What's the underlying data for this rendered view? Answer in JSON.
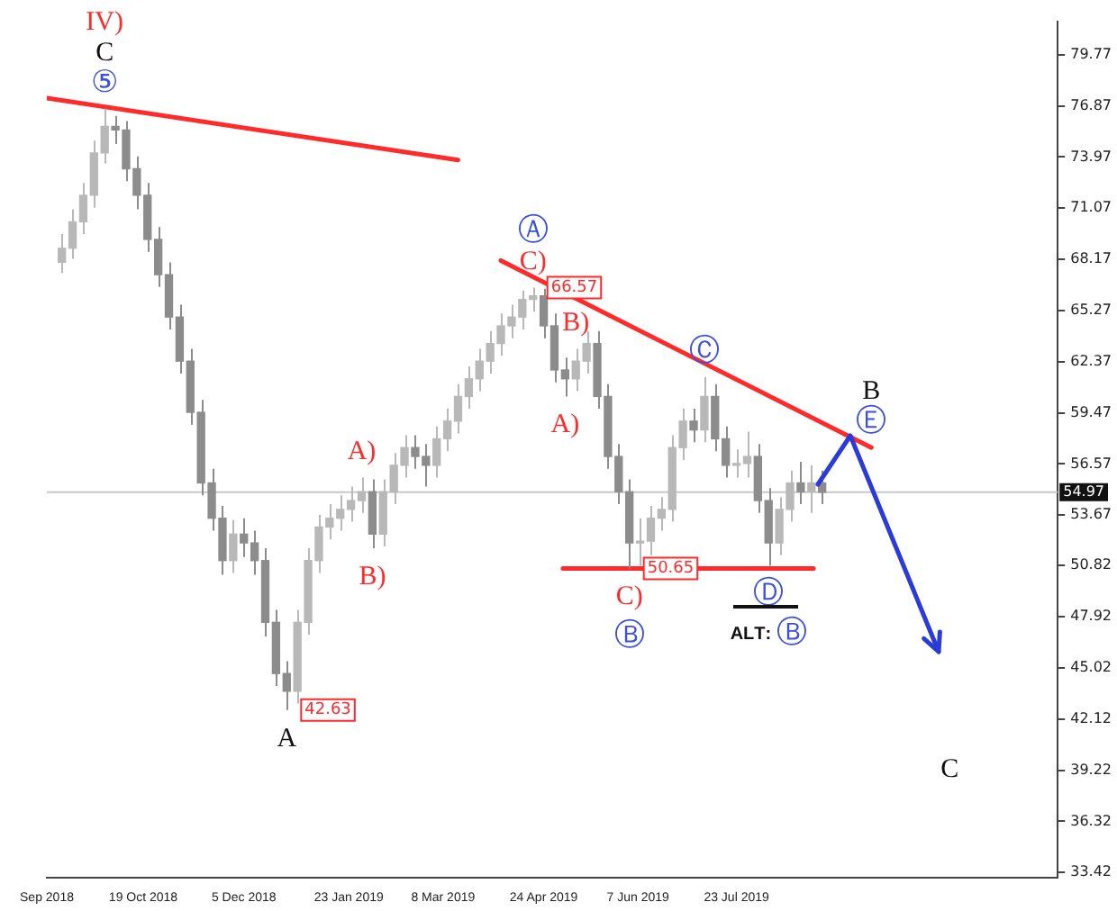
{
  "chart_data": {
    "type": "candlestick",
    "colors": [
      "#b8b8b8",
      "#b8b8b8",
      "#b8b8b8",
      "#b8b8b8",
      "#b8b8b8",
      "#8c8c8c",
      "#8c8c8c",
      "#8c8c8c",
      "#8c8c8c",
      "#8c8c8c",
      "#8c8c8c",
      "#8c8c8c",
      "#8c8c8c",
      "#8c8c8c",
      "#8c8c8c",
      "#8c8c8c",
      "#b8b8b8",
      "#8c8c8c",
      "#8c8c8c",
      "#8c8c8c",
      "#8c8c8c",
      "#8c8c8c",
      "#b8b8b8",
      "#b8b8b8",
      "#b8b8b8",
      "#b8b8b8",
      "#b8b8b8",
      "#b8b8b8",
      "#b8b8b8",
      "#8c8c8c",
      "#b8b8b8",
      "#b8b8b8",
      "#b8b8b8",
      "#8c8c8c",
      "#8c8c8c",
      "#b8b8b8",
      "#b8b8b8",
      "#b8b8b8",
      "#b8b8b8",
      "#b8b8b8",
      "#b8b8b8",
      "#b8b8b8",
      "#b8b8b8",
      "#b8b8b8",
      "#b8b8b8",
      "#8c8c8c",
      "#8c8c8c",
      "#8c8c8c",
      "#b8b8b8",
      "#b8b8b8",
      "#8c8c8c",
      "#8c8c8c",
      "#8c8c8c",
      "#8c8c8c",
      "#b8b8b8",
      "#b8b8b8",
      "#b8b8b8",
      "#b8b8b8",
      "#b8b8b8",
      "#8c8c8c",
      "#b8b8b8",
      "#8c8c8c",
      "#8c8c8c",
      "#b8b8b8",
      "#b8b8b8",
      "#8c8c8c",
      "#8c8c8c",
      "#b8b8b8",
      "#b8b8b8",
      "#8c8c8c",
      "#b8b8b8",
      "#8c8c8c"
    ],
    "x": [
      "2018-09-11",
      "2018-09-16",
      "2018-09-21",
      "2018-09-26",
      "2018-10-01",
      "2018-10-06",
      "2018-10-11",
      "2018-10-16",
      "2018-10-21",
      "2018-10-26",
      "2018-10-31",
      "2018-11-05",
      "2018-11-10",
      "2018-11-15",
      "2018-11-20",
      "2018-11-25",
      "2018-11-30",
      "2018-12-05",
      "2018-12-10",
      "2018-12-15",
      "2018-12-20",
      "2018-12-25",
      "2018-12-30",
      "2019-01-04",
      "2019-01-09",
      "2019-01-14",
      "2019-01-19",
      "2019-01-24",
      "2019-01-29",
      "2019-02-03",
      "2019-02-08",
      "2019-02-13",
      "2019-02-18",
      "2019-02-23",
      "2019-02-28",
      "2019-03-05",
      "2019-03-10",
      "2019-03-15",
      "2019-03-20",
      "2019-03-25",
      "2019-03-30",
      "2019-04-04",
      "2019-04-09",
      "2019-04-14",
      "2019-04-19",
      "2019-04-24",
      "2019-04-29",
      "2019-05-04",
      "2019-05-09",
      "2019-05-14",
      "2019-05-19",
      "2019-05-24",
      "2019-05-29",
      "2019-06-03",
      "2019-06-08",
      "2019-06-13",
      "2019-06-18",
      "2019-06-23",
      "2019-06-28",
      "2019-07-03",
      "2019-07-08",
      "2019-07-13",
      "2019-07-18",
      "2019-07-23",
      "2019-07-28",
      "2019-08-02",
      "2019-08-07",
      "2019-08-12",
      "2019-08-17",
      "2019-08-22",
      "2019-08-27",
      "2019-09-01"
    ],
    "ohlc": [
      [
        68.0,
        69.6,
        67.4,
        68.8
      ],
      [
        68.8,
        71.0,
        68.2,
        70.3
      ],
      [
        70.3,
        72.5,
        69.6,
        71.8
      ],
      [
        71.8,
        74.9,
        71.1,
        74.2
      ],
      [
        74.2,
        76.7,
        73.6,
        75.7
      ],
      [
        75.7,
        76.3,
        74.7,
        75.5
      ],
      [
        75.5,
        76.0,
        72.6,
        73.3
      ],
      [
        73.3,
        74.0,
        71.0,
        71.8
      ],
      [
        71.8,
        72.5,
        68.6,
        69.3
      ],
      [
        69.3,
        70.0,
        66.6,
        67.3
      ],
      [
        67.3,
        68.0,
        64.2,
        64.9
      ],
      [
        64.9,
        65.6,
        61.7,
        62.4
      ],
      [
        62.4,
        63.1,
        58.8,
        59.5
      ],
      [
        59.5,
        60.2,
        54.8,
        55.5
      ],
      [
        55.5,
        56.3,
        52.8,
        53.5
      ],
      [
        53.5,
        54.2,
        50.3,
        51.1
      ],
      [
        51.1,
        53.4,
        50.4,
        52.6
      ],
      [
        52.6,
        53.5,
        51.3,
        52.1
      ],
      [
        52.1,
        52.8,
        50.3,
        51.1
      ],
      [
        51.1,
        51.8,
        46.8,
        47.6
      ],
      [
        47.6,
        48.3,
        44.0,
        44.7
      ],
      [
        44.7,
        45.4,
        42.63,
        43.7
      ],
      [
        43.7,
        48.3,
        43.0,
        47.6
      ],
      [
        47.6,
        51.8,
        46.9,
        51.1
      ],
      [
        51.1,
        53.7,
        50.4,
        53.0
      ],
      [
        53.0,
        54.3,
        52.3,
        53.5
      ],
      [
        53.5,
        54.8,
        52.8,
        54.0
      ],
      [
        54.0,
        55.3,
        53.3,
        54.5
      ],
      [
        54.5,
        55.8,
        53.8,
        55.0
      ],
      [
        55.0,
        55.7,
        51.8,
        52.6
      ],
      [
        52.6,
        55.7,
        51.9,
        55.0
      ],
      [
        55.0,
        57.2,
        54.3,
        56.5
      ],
      [
        56.5,
        58.2,
        55.8,
        57.5
      ],
      [
        57.5,
        58.2,
        56.3,
        57.0
      ],
      [
        57.0,
        57.7,
        55.3,
        56.5
      ],
      [
        56.5,
        58.7,
        55.8,
        58.0
      ],
      [
        58.0,
        59.7,
        57.3,
        59.0
      ],
      [
        59.0,
        61.1,
        58.3,
        60.4
      ],
      [
        60.4,
        62.1,
        59.7,
        61.4
      ],
      [
        61.4,
        63.1,
        60.7,
        62.4
      ],
      [
        62.4,
        64.1,
        61.7,
        63.4
      ],
      [
        63.4,
        65.1,
        62.7,
        64.4
      ],
      [
        64.4,
        65.6,
        63.7,
        64.9
      ],
      [
        64.9,
        66.4,
        64.2,
        65.9
      ],
      [
        65.9,
        66.57,
        65.2,
        66.1
      ],
      [
        66.1,
        66.5,
        63.7,
        64.4
      ],
      [
        64.4,
        65.1,
        61.2,
        61.9
      ],
      [
        61.9,
        62.6,
        60.4,
        61.4
      ],
      [
        61.4,
        63.1,
        60.7,
        62.4
      ],
      [
        62.4,
        64.1,
        61.7,
        63.4
      ],
      [
        63.4,
        64.1,
        59.7,
        60.4
      ],
      [
        60.4,
        61.1,
        56.3,
        57.0
      ],
      [
        57.0,
        57.7,
        54.3,
        55.0
      ],
      [
        55.0,
        55.7,
        50.65,
        52.1
      ],
      [
        52.1,
        53.5,
        50.8,
        52.2
      ],
      [
        52.2,
        54.2,
        51.4,
        53.5
      ],
      [
        53.5,
        54.7,
        52.8,
        54.0
      ],
      [
        54.0,
        58.2,
        53.3,
        57.5
      ],
      [
        57.5,
        59.7,
        56.8,
        59.0
      ],
      [
        59.0,
        59.7,
        57.8,
        58.5
      ],
      [
        58.5,
        61.5,
        57.8,
        60.4
      ],
      [
        60.4,
        61.1,
        57.3,
        58.0
      ],
      [
        58.0,
        58.7,
        55.8,
        56.5
      ],
      [
        56.5,
        57.4,
        55.8,
        56.6
      ],
      [
        56.6,
        58.4,
        55.8,
        57.0
      ],
      [
        57.0,
        57.7,
        53.8,
        54.5
      ],
      [
        54.5,
        55.2,
        50.8,
        52.1
      ],
      [
        52.1,
        54.7,
        51.4,
        54.0
      ],
      [
        54.0,
        56.2,
        53.3,
        55.5
      ],
      [
        55.5,
        56.7,
        54.3,
        55.0
      ],
      [
        55.0,
        56.5,
        53.8,
        55.5
      ],
      [
        55.5,
        56.2,
        54.3,
        54.97
      ]
    ],
    "series": [
      {
        "type": "line",
        "color": "#ff2a2a",
        "x": [
          "2018-09-04",
          "2019-03-15"
        ],
        "values": [
          77.3,
          73.8
        ]
      },
      {
        "type": "line",
        "color": "#ff2a2a",
        "x": [
          "2019-04-04",
          "2019-09-24"
        ],
        "values": [
          68.1,
          57.5
        ]
      },
      {
        "type": "line",
        "color": "#ff2a2a",
        "x": [
          "2019-05-03",
          "2019-08-28"
        ],
        "values": [
          50.65,
          50.65
        ]
      }
    ],
    "xlim": [
      "2018-09-04",
      "2019-12-20"
    ],
    "xticks": [
      {
        "value": "2018-09-04",
        "label": "Sep 2018"
      },
      {
        "value": "2018-10-19",
        "label": "19 Oct 2018"
      },
      {
        "value": "2018-12-05",
        "label": "5 Dec 2018"
      },
      {
        "value": "2019-01-23",
        "label": "23 Jan 2019"
      },
      {
        "value": "2019-03-08",
        "label": "8 Mar 2019"
      },
      {
        "value": "2019-04-24",
        "label": "24 Apr 2019"
      },
      {
        "value": "2019-06-07",
        "label": "7 Jun 2019"
      },
      {
        "value": "2019-07-23",
        "label": "23 Jul 2019"
      }
    ],
    "ylim": [
      33.12,
      81.64
    ],
    "yticks": [
      33.42,
      36.32,
      39.22,
      42.12,
      45.02,
      47.92,
      50.82,
      53.67,
      56.57,
      59.47,
      62.37,
      65.27,
      68.17,
      71.07,
      73.97,
      76.87,
      79.77
    ],
    "ref_lines": [
      {
        "axis": "y",
        "value": 54.97,
        "label": "54.97",
        "color": "#c8c8c8"
      }
    ],
    "grid": false,
    "legend": false,
    "annotations": [
      {
        "text": "IV)",
        "x": "2018-10-01",
        "y": 76.7
      },
      {
        "text": "C",
        "x": "2018-10-01",
        "y": 76.7
      },
      {
        "text": "⑤",
        "x": "2018-10-01",
        "y": 76.7
      },
      {
        "text": "A",
        "x": "2018-12-25",
        "y": 42.63
      },
      {
        "text": "42.63",
        "x": "2018-12-25",
        "y": 42.63
      },
      {
        "text": "A)",
        "x": "2019-01-29",
        "y": 55.8
      },
      {
        "text": "B)",
        "x": "2019-02-03",
        "y": 51.8
      },
      {
        "text": "Ⓐ",
        "x": "2019-04-19",
        "y": 66.57
      },
      {
        "text": "C)",
        "x": "2019-04-19",
        "y": 66.57
      },
      {
        "text": "66.57",
        "x": "2019-04-19",
        "y": 66.57
      },
      {
        "text": "B)",
        "x": "2019-05-09",
        "y": 63.1
      },
      {
        "text": "A)",
        "x": "2019-05-04",
        "y": 60.4
      },
      {
        "text": "Ⓒ",
        "x": "2019-07-08",
        "y": 61.5
      },
      {
        "text": "B",
        "x": "2019-09-24",
        "y": 57.5
      },
      {
        "text": "Ⓔ",
        "x": "2019-09-24",
        "y": 57.5
      },
      {
        "text": "50.65",
        "x": "2019-06-03",
        "y": 50.65
      },
      {
        "text": "C)",
        "x": "2019-06-03",
        "y": 50.65
      },
      {
        "text": "Ⓑ",
        "x": "2019-06-03",
        "y": 50.65
      },
      {
        "text": "Ⓓ",
        "x": "2019-08-07",
        "y": 50.8
      },
      {
        "text": "ALT: Ⓑ",
        "x": "2019-08-07",
        "y": 50.8
      },
      "C"
    ]
  }
}
